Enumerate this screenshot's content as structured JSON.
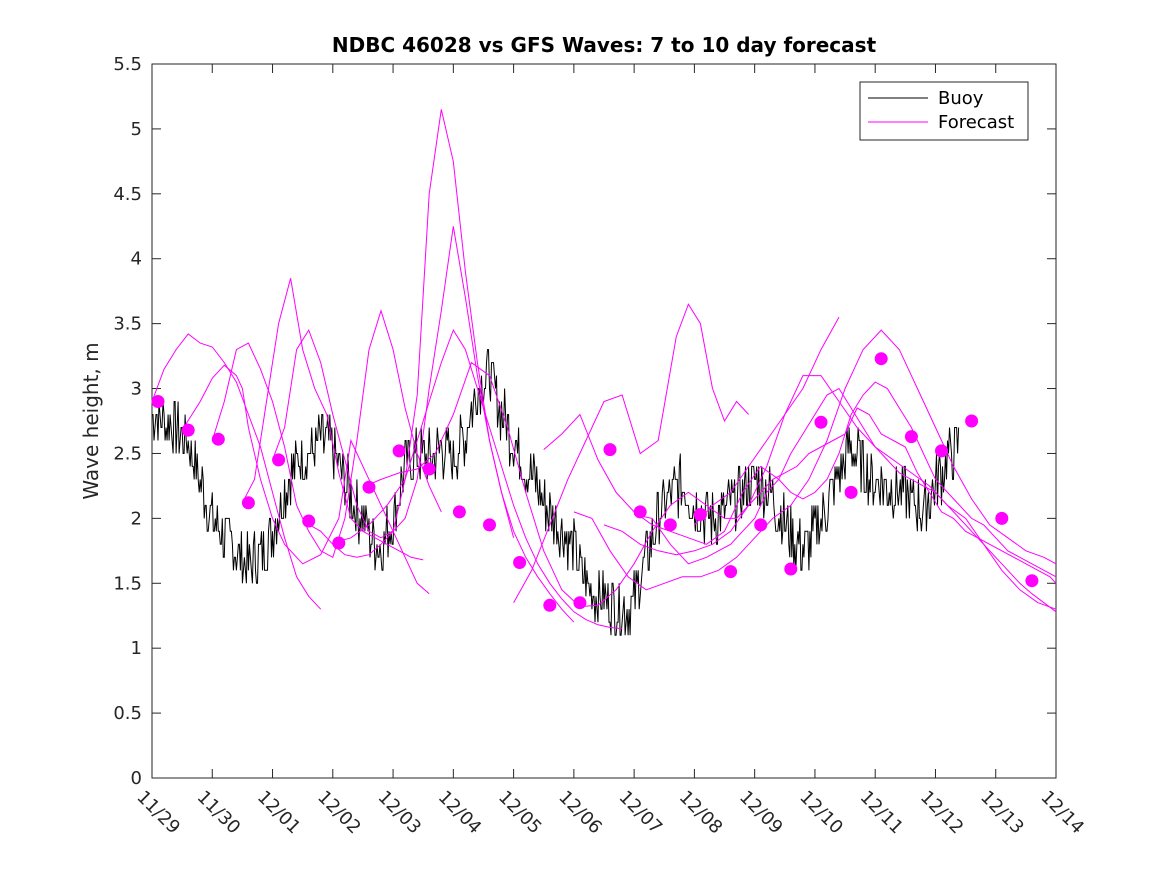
{
  "chart_data": {
    "type": "line",
    "title": "NDBC 46028 vs GFS Waves: 7 to 10 day forecast",
    "xlabel": "",
    "ylabel": "Wave height, m",
    "xlim": [
      0,
      15
    ],
    "ylim": [
      0,
      5.5
    ],
    "x_tick_labels": [
      "11/29",
      "11/30",
      "12/01",
      "12/02",
      "12/03",
      "12/04",
      "12/05",
      "12/06",
      "12/07",
      "12/08",
      "12/09",
      "12/10",
      "12/11",
      "12/12",
      "12/13",
      "12/14"
    ],
    "y_ticks": [
      0,
      0.5,
      1,
      1.5,
      2,
      2.5,
      3,
      3.5,
      4,
      4.5,
      5,
      5.5
    ],
    "y_tick_labels": [
      "0",
      "0.5",
      "1",
      "1.5",
      "2",
      "2.5",
      "3",
      "3.5",
      "4",
      "4.5",
      "5",
      "5.5"
    ],
    "legend": {
      "position": "top-right",
      "entries": [
        {
          "name": "Buoy",
          "color": "#000000"
        },
        {
          "name": "Forecast",
          "color": "#ff00ff"
        }
      ]
    },
    "colors": {
      "buoy": "#000000",
      "forecast": "#ff00ff",
      "axes": "#262626"
    },
    "buoy": {
      "name": "Buoy",
      "x": [
        0.0,
        0.2,
        0.4,
        0.6,
        0.8,
        1.0,
        1.2,
        1.4,
        1.6,
        1.8,
        2.0,
        2.2,
        2.4,
        2.6,
        2.8,
        3.0,
        3.2,
        3.4,
        3.6,
        3.8,
        4.0,
        4.2,
        4.4,
        4.6,
        4.8,
        5.0,
        5.2,
        5.4,
        5.6,
        5.8,
        6.0,
        6.2,
        6.4,
        6.6,
        6.8,
        7.0,
        7.2,
        7.4,
        7.6,
        7.8,
        8.0,
        8.2,
        8.4,
        8.6,
        8.8,
        9.0,
        9.2,
        9.4,
        9.6,
        9.8,
        10.0,
        10.2,
        10.4,
        10.6,
        10.8,
        11.0,
        11.2,
        11.4,
        11.6,
        11.8,
        12.0,
        12.2,
        12.4,
        12.6,
        12.8,
        13.0,
        13.2,
        13.4
      ],
      "y": [
        2.8,
        2.75,
        2.7,
        2.6,
        2.3,
        2.0,
        1.85,
        1.75,
        1.65,
        1.7,
        1.9,
        2.2,
        2.45,
        2.5,
        2.6,
        2.55,
        2.3,
        2.05,
        1.9,
        1.75,
        2.0,
        2.4,
        2.5,
        2.45,
        2.55,
        2.45,
        2.65,
        3.0,
        3.1,
        2.8,
        2.6,
        2.4,
        2.25,
        2.05,
        1.9,
        1.75,
        1.5,
        1.4,
        1.35,
        1.3,
        1.35,
        1.7,
        2.0,
        2.2,
        2.25,
        2.1,
        2.0,
        2.0,
        2.1,
        2.2,
        2.3,
        2.25,
        2.05,
        1.85,
        1.75,
        1.9,
        2.1,
        2.35,
        2.55,
        2.4,
        2.3,
        2.25,
        2.2,
        2.15,
        2.05,
        2.25,
        2.45,
        2.55
      ]
    },
    "series": [
      {
        "name": "Forecast",
        "x": [
          0.0,
          0.2,
          0.4,
          0.6,
          0.8,
          1.0,
          1.2,
          1.4,
          1.6,
          1.8,
          2.0,
          2.2,
          2.4,
          2.6,
          2.8
        ],
        "y": [
          2.9,
          3.15,
          3.3,
          3.42,
          3.35,
          3.32,
          3.2,
          3.05,
          2.8,
          2.55,
          2.2,
          1.85,
          1.55,
          1.4,
          1.3
        ]
      },
      {
        "name": "Forecast",
        "x": [
          0.5,
          0.8,
          1.0,
          1.2,
          1.4,
          1.5,
          1.6,
          1.8,
          2.0,
          2.2,
          2.4,
          2.5,
          2.8,
          3.1,
          3.3,
          3.6,
          4.0,
          4.2,
          4.4,
          4.6
        ],
        "y": [
          2.68,
          2.9,
          3.08,
          3.18,
          3.1,
          3.0,
          2.7,
          2.3,
          2.0,
          1.8,
          1.7,
          1.65,
          1.72,
          2.0,
          2.6,
          2.3,
          1.9,
          1.7,
          1.5,
          1.42
        ]
      },
      {
        "name": "Forecast",
        "x": [
          1.0,
          1.2,
          1.4,
          1.6,
          1.8,
          2.0,
          2.2,
          2.4,
          2.6,
          2.8,
          3.0,
          3.2,
          3.4,
          3.6,
          3.8,
          4.0,
          4.2,
          4.4,
          4.6,
          4.8
        ],
        "y": [
          2.6,
          2.9,
          3.3,
          3.35,
          3.15,
          2.9,
          2.55,
          2.1,
          1.9,
          1.75,
          1.7,
          2.0,
          2.6,
          3.3,
          3.6,
          3.3,
          2.85,
          2.5,
          2.25,
          2.05
        ]
      },
      {
        "name": "Forecast",
        "x": [
          1.5,
          1.7,
          1.9,
          2.1,
          2.3,
          2.5,
          2.7,
          2.9,
          3.1,
          3.3,
          3.5,
          3.7,
          3.9,
          4.1,
          4.3,
          4.5
        ],
        "y": [
          2.12,
          2.3,
          2.9,
          3.5,
          3.85,
          3.3,
          3.0,
          2.8,
          2.35,
          2.0,
          1.9,
          1.85,
          1.8,
          1.75,
          1.7,
          1.68
        ]
      },
      {
        "name": "Forecast",
        "x": [
          2.0,
          2.2,
          2.4,
          2.6,
          2.8,
          3.0,
          3.2,
          3.4,
          3.6,
          3.8,
          4.0,
          4.2,
          4.4,
          4.6,
          4.8,
          5.0,
          5.2,
          5.4,
          5.6,
          5.8,
          6.0
        ],
        "y": [
          2.45,
          2.7,
          3.3,
          3.45,
          3.2,
          2.8,
          2.45,
          2.1,
          1.9,
          1.85,
          1.9,
          2.3,
          2.95,
          4.5,
          5.15,
          4.75,
          3.9,
          3.2,
          2.6,
          2.2,
          1.85
        ]
      },
      {
        "name": "Forecast",
        "x": [
          2.5,
          2.8,
          3.0,
          3.2,
          3.4,
          3.6,
          3.8,
          4.0,
          4.2,
          4.4,
          4.6,
          4.8,
          5.0,
          5.2,
          5.4,
          5.6,
          5.8,
          6.0,
          6.2,
          6.4,
          6.6,
          6.8,
          7.0
        ],
        "y": [
          1.98,
          1.9,
          1.8,
          1.72,
          1.7,
          1.72,
          1.8,
          1.9,
          2.0,
          2.3,
          3.0,
          3.6,
          4.25,
          3.7,
          3.1,
          2.6,
          2.2,
          1.9,
          1.7,
          1.55,
          1.42,
          1.3,
          1.2
        ]
      },
      {
        "name": "Forecast",
        "x": [
          3.0,
          3.3,
          3.6,
          3.9,
          4.2,
          4.4,
          4.6,
          4.8,
          5.0,
          5.2,
          5.4,
          5.6,
          5.8,
          6.0,
          6.2,
          6.4,
          6.6,
          6.8,
          7.0,
          7.2,
          7.4,
          7.6,
          7.8
        ],
        "y": [
          1.81,
          1.85,
          1.95,
          2.1,
          2.3,
          2.6,
          2.9,
          3.2,
          3.45,
          3.3,
          3.0,
          2.7,
          2.4,
          2.1,
          1.85,
          1.65,
          1.5,
          1.38,
          1.28,
          1.22,
          1.18,
          1.16,
          1.15
        ]
      },
      {
        "name": "Forecast",
        "x": [
          3.5,
          3.8,
          4.1,
          4.4,
          4.7,
          5.0,
          5.3,
          5.6,
          5.9,
          6.2,
          6.5,
          6.8,
          7.1,
          7.4,
          7.7,
          8.0,
          8.3,
          8.6,
          8.9,
          9.2,
          9.5,
          9.7,
          9.9,
          10.1,
          10.3,
          10.5,
          10.7,
          10.9,
          11.1,
          11.3,
          11.5,
          11.7,
          11.9,
          12.1,
          12.3,
          12.5,
          12.7,
          12.9,
          13.1,
          13.3,
          13.5,
          13.7,
          13.9,
          14.1,
          14.3,
          14.5,
          14.7,
          14.9,
          15.0
        ],
        "y": [
          2.24,
          2.3,
          2.35,
          2.38,
          2.5,
          2.8,
          3.2,
          3.1,
          2.7,
          2.2,
          1.75,
          1.45,
          1.32,
          1.33,
          1.45,
          1.65,
          1.9,
          2.1,
          2.2,
          2.1,
          2.0,
          2.0,
          2.1,
          2.2,
          2.3,
          2.35,
          2.4,
          2.5,
          2.55,
          2.6,
          2.65,
          2.85,
          2.8,
          2.65,
          2.6,
          2.55,
          2.35,
          2.2,
          2.05,
          2.0,
          1.9,
          1.85,
          1.8,
          1.75,
          1.7,
          1.65,
          1.6,
          1.55,
          1.5
        ]
      },
      {
        "name": "Forecast",
        "x": [
          6.5,
          6.8,
          7.1,
          7.4,
          7.7,
          8.0,
          8.3,
          8.6,
          8.9,
          9.2,
          9.5,
          9.8,
          10.1,
          10.4,
          10.6,
          10.8,
          11.0,
          11.2,
          11.4,
          11.6,
          11.8,
          12.0,
          12.2,
          12.4,
          12.6,
          12.8,
          13.0,
          13.2,
          13.4,
          13.6,
          13.8,
          14.0,
          14.2,
          14.4,
          14.6,
          14.8,
          15.0
        ],
        "y": [
          2.53,
          2.65,
          2.8,
          2.45,
          2.2,
          2.05,
          1.95,
          1.9,
          1.85,
          1.8,
          1.9,
          2.2,
          2.4,
          2.3,
          2.2,
          2.15,
          2.2,
          2.3,
          2.5,
          2.8,
          2.95,
          3.05,
          3.0,
          2.85,
          2.7,
          2.5,
          2.3,
          2.2,
          2.1,
          2.0,
          1.95,
          1.85,
          1.75,
          1.7,
          1.65,
          1.6,
          1.55
        ]
      },
      {
        "name": "Forecast",
        "x": [
          7.0,
          7.3,
          7.6,
          7.9,
          8.2,
          8.5,
          8.8,
          9.1,
          9.4,
          9.7,
          10.0,
          10.3,
          10.6,
          10.9,
          11.2,
          11.5,
          11.8,
          12.1,
          12.4,
          12.7,
          13.0,
          13.3,
          13.6,
          13.9,
          14.2,
          14.5,
          14.8,
          15.0
        ],
        "y": [
          2.05,
          2.0,
          1.75,
          1.55,
          1.45,
          1.5,
          1.55,
          1.55,
          1.6,
          1.7,
          1.85,
          2.0,
          2.1,
          2.3,
          2.6,
          3.0,
          3.3,
          3.45,
          3.3,
          3.0,
          2.7,
          2.4,
          2.15,
          1.95,
          1.85,
          1.75,
          1.7,
          1.65
        ]
      },
      {
        "name": "Forecast",
        "x": [
          7.5,
          7.8,
          8.1,
          8.4,
          8.7,
          9.0,
          9.3,
          9.6,
          9.9,
          10.2,
          10.5,
          10.8,
          11.1,
          11.4,
          11.7,
          12.0,
          12.3,
          12.6,
          12.9,
          13.2,
          13.5,
          13.8,
          14.1,
          14.4,
          14.7,
          15.0
        ],
        "y": [
          1.95,
          1.9,
          1.8,
          1.75,
          1.72,
          1.75,
          1.8,
          1.9,
          2.1,
          2.4,
          2.8,
          3.1,
          3.1,
          2.9,
          2.7,
          2.55,
          2.45,
          2.35,
          2.25,
          2.1,
          2.0,
          1.8,
          1.6,
          1.45,
          1.35,
          1.3
        ]
      },
      {
        "name": "Forecast",
        "x": [
          8.0,
          8.3,
          8.6,
          8.9,
          9.2,
          9.4,
          9.6,
          9.8,
          10.0,
          10.2,
          10.4,
          10.6,
          10.8,
          11.0,
          11.2,
          11.4,
          11.6,
          11.8,
          12.0,
          12.2,
          12.4,
          12.6,
          12.8,
          13.0,
          13.2,
          13.4,
          13.6,
          13.8,
          14.0,
          14.2,
          14.4,
          14.6,
          14.8,
          15.0
        ],
        "y": [
          2.03,
          2.0,
          1.8,
          1.65,
          1.7,
          1.75,
          1.8,
          1.9,
          2.0,
          2.2,
          2.3,
          2.5,
          2.65,
          2.8,
          2.95,
          3.0,
          2.85,
          2.7,
          2.55,
          2.45,
          2.35,
          2.3,
          2.25,
          2.2,
          2.1,
          2.0,
          1.9,
          1.8,
          1.7,
          1.6,
          1.5,
          1.42,
          1.35,
          1.28
        ]
      },
      {
        "name": "Forecast",
        "x": [
          6.0,
          6.3,
          6.6,
          6.9,
          7.2,
          7.5,
          7.8,
          8.1,
          8.4,
          8.7,
          8.9,
          9.1,
          9.3,
          9.5,
          9.7,
          9.9
        ],
        "y": [
          1.35,
          1.6,
          1.95,
          2.3,
          2.6,
          2.9,
          2.95,
          2.5,
          2.6,
          3.4,
          3.65,
          3.5,
          3.0,
          2.75,
          2.9,
          2.8
        ]
      },
      {
        "name": "Forecast",
        "x": [
          9.0,
          9.3,
          9.6,
          9.9,
          10.2,
          10.5,
          10.8,
          11.1,
          11.4
        ],
        "y": [
          1.95,
          2.1,
          2.2,
          2.4,
          2.6,
          2.8,
          3.0,
          3.3,
          3.55
        ]
      }
    ],
    "forecast_points": {
      "name": "Forecast",
      "x": [
        0.1,
        0.6,
        1.1,
        1.6,
        2.1,
        2.6,
        3.1,
        3.6,
        4.1,
        4.6,
        5.1,
        5.6,
        6.1,
        6.6,
        7.1,
        7.6,
        8.1,
        8.6,
        9.1,
        9.6,
        10.1,
        10.6,
        11.1,
        11.6,
        12.1,
        12.6,
        13.1,
        13.6,
        14.1,
        14.6
      ],
      "y": [
        2.9,
        2.68,
        2.61,
        2.12,
        2.45,
        1.98,
        1.81,
        2.24,
        2.52,
        2.38,
        2.05,
        1.95,
        1.66,
        1.33,
        1.35,
        2.53,
        2.05,
        1.95,
        2.03,
        1.59,
        1.95,
        1.61,
        2.74,
        2.2,
        3.23,
        2.63,
        2.52,
        2.75,
        2.0,
        1.52
      ]
    }
  }
}
